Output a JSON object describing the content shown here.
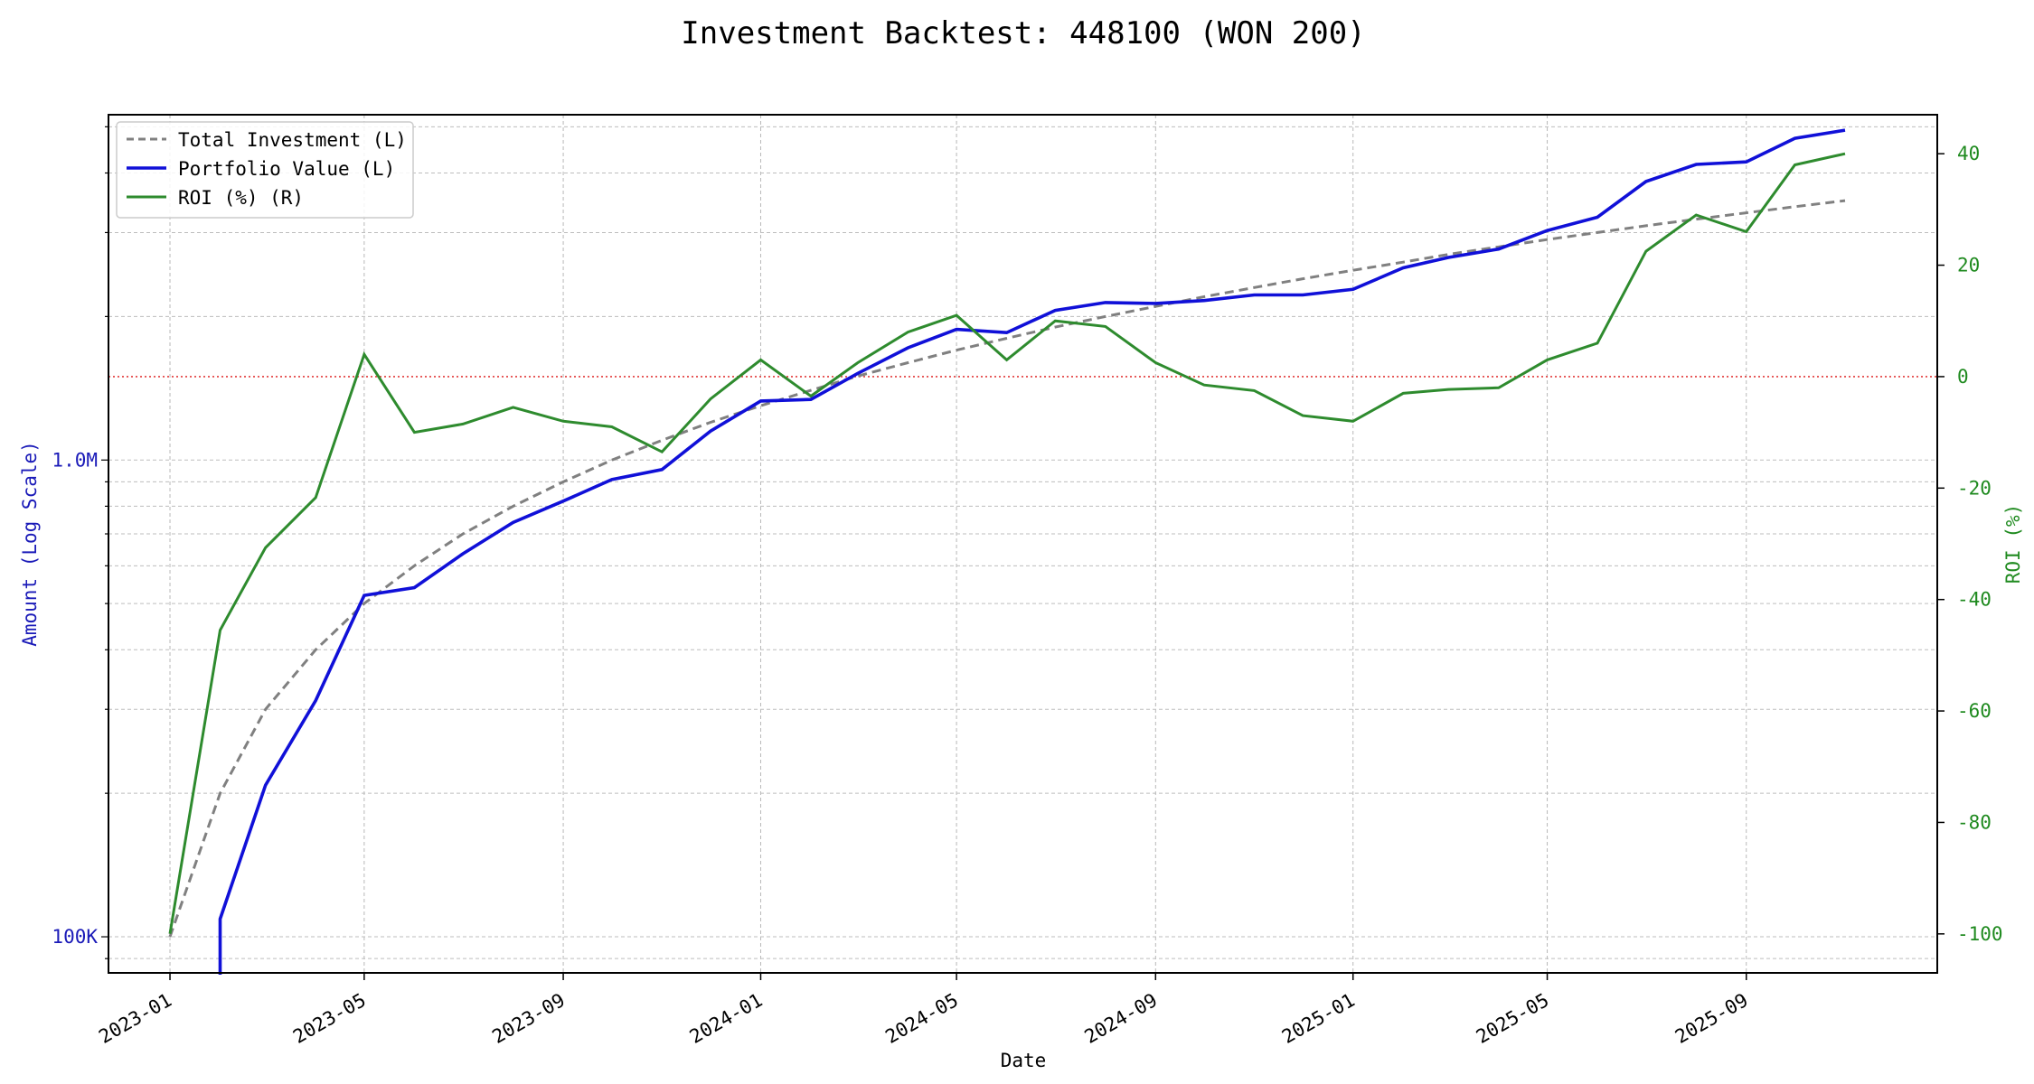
{
  "chart_data": {
    "type": "line",
    "title": "Investment Backtest: 448100 (WON 200)",
    "xlabel": "Date",
    "ylabel_left": "Amount (Log Scale)",
    "ylabel_right": "ROI (%)",
    "left_scale": "log",
    "left_ylim": [
      84000,
      5300000
    ],
    "right_ylim": [
      -107,
      47
    ],
    "x_range": [
      "2022-11-24",
      "2025-12-28"
    ],
    "x_ticks": [
      "2023-01",
      "2023-05",
      "2023-09",
      "2024-01",
      "2024-05",
      "2024-09",
      "2025-01",
      "2025-05",
      "2025-09"
    ],
    "left_ticks": [
      {
        "value": 100000,
        "label": "100K"
      },
      {
        "value": 1000000,
        "label": "1.0M"
      }
    ],
    "right_ticks": [
      -100,
      -80,
      -60,
      -40,
      -20,
      0,
      20,
      40
    ],
    "reference_line": {
      "axis": "right",
      "value": 0,
      "color": "#e33b3b",
      "style": "dotted"
    },
    "grid": true,
    "legend_position": "top-left",
    "colors": {
      "investment": "#808080",
      "portfolio": "#1010d8",
      "roi": "#2e8b2e",
      "left_axis": "#1a1ab8",
      "right_axis": "#1f8a1f"
    },
    "dates": [
      "2023-01-01",
      "2023-02-01",
      "2023-03-01",
      "2023-04-01",
      "2023-05-01",
      "2023-06-01",
      "2023-07-01",
      "2023-08-01",
      "2023-09-01",
      "2023-10-01",
      "2023-11-01",
      "2023-12-01",
      "2024-01-01",
      "2024-02-01",
      "2024-03-01",
      "2024-04-01",
      "2024-05-01",
      "2024-06-01",
      "2024-07-01",
      "2024-08-01",
      "2024-09-01",
      "2024-10-01",
      "2024-11-01",
      "2024-12-01",
      "2025-01-01",
      "2025-02-01",
      "2025-03-01",
      "2025-04-01",
      "2025-05-01",
      "2025-06-01",
      "2025-07-01",
      "2025-08-01",
      "2025-09-01",
      "2025-10-01",
      "2025-11-01"
    ],
    "series": [
      {
        "name": "Total Investment (L)",
        "axis": "left",
        "values": [
          100000,
          200000,
          300000,
          400000,
          500000,
          600000,
          700000,
          800000,
          900000,
          1000000,
          1100000,
          1200000,
          1300000,
          1400000,
          1500000,
          1600000,
          1700000,
          1800000,
          1900000,
          2000000,
          2100000,
          2200000,
          2300000,
          2400000,
          2500000,
          2600000,
          2700000,
          2800000,
          2900000,
          3000000,
          3100000,
          3200000,
          3300000,
          3400000,
          3500000
        ]
      },
      {
        "name": "Portfolio Value (L)",
        "axis": "left",
        "values": [
          0,
          109000,
          208000,
          313000,
          520000,
          540000,
          636000,
          740000,
          820000,
          910000,
          955000,
          1150000,
          1330000,
          1340000,
          1520000,
          1720000,
          1880000,
          1850000,
          2060000,
          2140000,
          2130000,
          2160000,
          2220000,
          2220000,
          2280000,
          2530000,
          2660000,
          2770000,
          3030000,
          3230000,
          3840000,
          4170000,
          4220000,
          4730000,
          4920000
        ]
      },
      {
        "name": "ROI (%) (R)",
        "axis": "right",
        "values": [
          -100,
          -45.5,
          -30.7,
          -21.7,
          4,
          -10,
          -8.5,
          -5.5,
          -8,
          -9,
          -13.5,
          -4,
          3,
          -3.5,
          2.5,
          8,
          11,
          3,
          10,
          9,
          2.5,
          -1.5,
          -2.5,
          -7,
          -8,
          -3,
          -2.3,
          -2,
          3,
          6,
          22.5,
          29,
          26,
          38,
          40
        ]
      }
    ]
  }
}
